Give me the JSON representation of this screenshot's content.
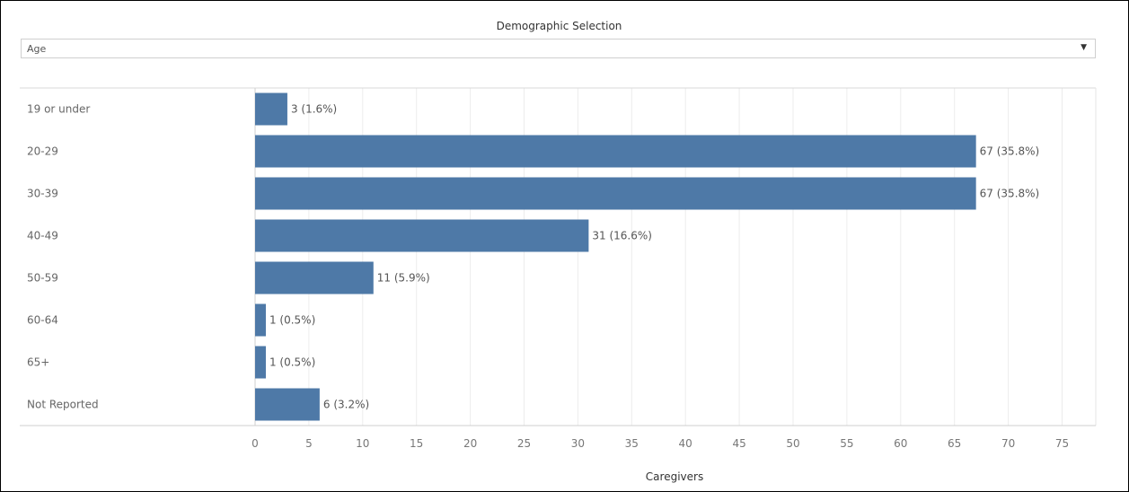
{
  "filter": {
    "title": "Demographic Selection",
    "selected": "Age",
    "caret": "▼"
  },
  "chart_data": {
    "type": "bar",
    "orientation": "horizontal",
    "categories": [
      "19 or under",
      "20-29",
      "30-39",
      "40-49",
      "50-59",
      "60-64",
      "65+",
      "Not Reported"
    ],
    "values": [
      3,
      67,
      67,
      31,
      11,
      1,
      1,
      6
    ],
    "data_labels": [
      "3 (1.6%)",
      "67 (35.8%)",
      "67 (35.8%)",
      "31 (16.6%)",
      "11 (5.9%)",
      "1 (0.5%)",
      "1 (0.5%)",
      "6 (3.2%)"
    ],
    "xlabel": "Caregivers",
    "ylabel": "",
    "xlim": [
      0,
      75
    ],
    "xticks": [
      0,
      5,
      10,
      15,
      20,
      25,
      30,
      35,
      40,
      45,
      50,
      55,
      60,
      65,
      70,
      75
    ],
    "grid": true,
    "bar_color": "#4e79a7"
  }
}
